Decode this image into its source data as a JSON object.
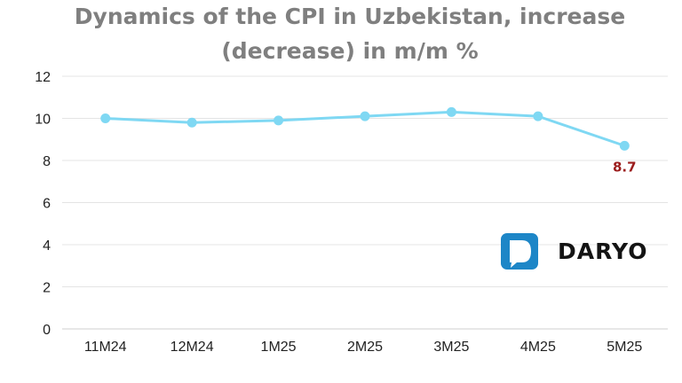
{
  "chart_data": {
    "type": "line",
    "title": [
      "Dynamics of the CPI in Uzbekistan, increase",
      "(decrease) in m/m %"
    ],
    "categories": [
      "11M24",
      "12M24",
      "1M25",
      "2M25",
      "3M25",
      "4M25",
      "5M25"
    ],
    "series": [
      {
        "values": [
          10.0,
          9.8,
          9.9,
          10.1,
          10.3,
          10.1,
          8.7
        ]
      }
    ],
    "ylim": [
      0,
      12
    ],
    "yticks": [
      "0",
      "2",
      "4",
      "6",
      "8",
      "10",
      "12"
    ],
    "data_labels": [
      {
        "index": 6,
        "text": "8.7"
      }
    ],
    "grid": true,
    "legend": "none"
  },
  "logo": {
    "text": "DARYO"
  },
  "colors": {
    "line": "#7fd8f3",
    "marker": "#7fd8f3",
    "data_label": "#9b1c1c",
    "logo_blue": "#1d86c7",
    "title": "#7f7f7f"
  }
}
